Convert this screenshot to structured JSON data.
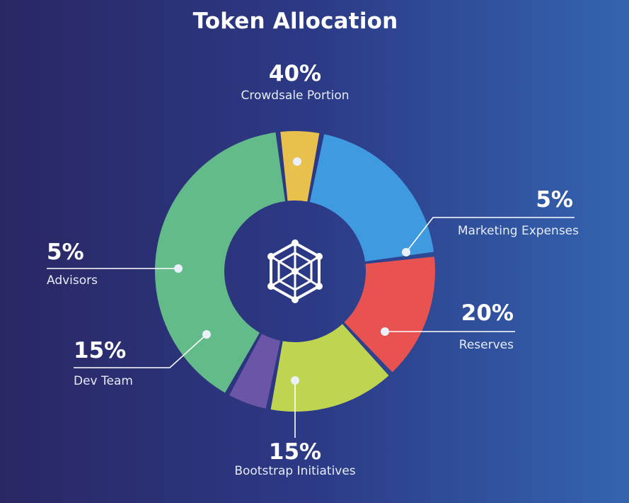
{
  "title": "Token Allocation",
  "chart_data": {
    "type": "pie",
    "title": "Token Allocation",
    "categories": [
      "Crowdsale Portion",
      "Marketing Expenses",
      "Reserves",
      "Bootstrap Initiatives",
      "Dev Team",
      "Advisors"
    ],
    "values": [
      40,
      5,
      20,
      15,
      15,
      5
    ],
    "labels": [
      "40%",
      "5%",
      "20%",
      "15%",
      "15%",
      "5%"
    ],
    "colors": [
      "#63bb8a",
      "#e8c04e",
      "#3f9ae0",
      "#e85352",
      "#bfd552",
      "#6b55a6"
    ],
    "hole": true,
    "legend": "callouts"
  },
  "center_icon": "hexagon-network-icon"
}
